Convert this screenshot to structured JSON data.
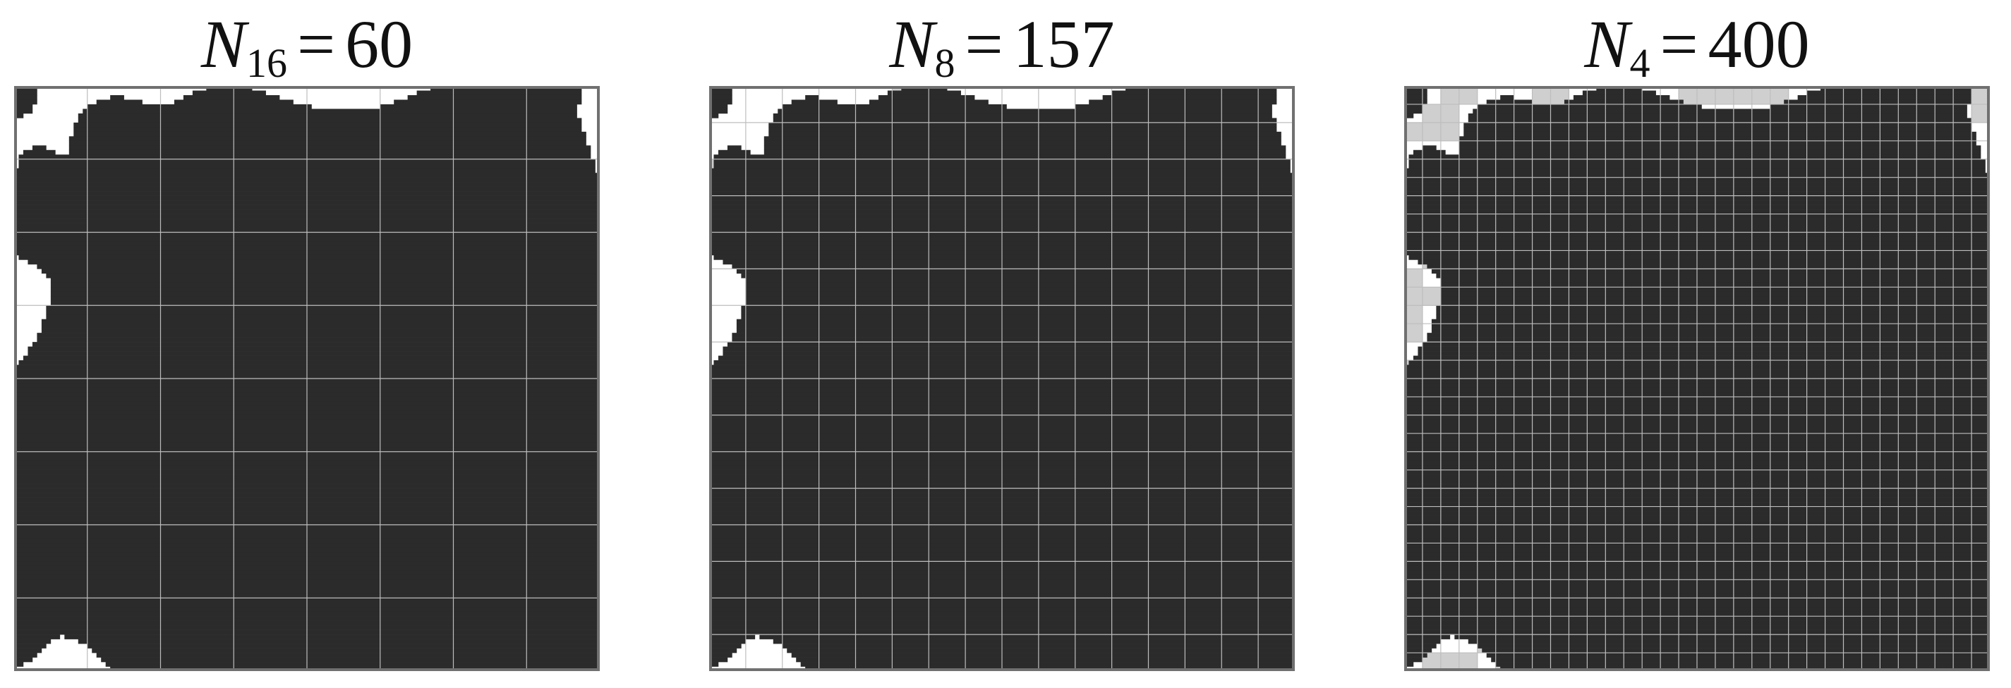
{
  "panels": [
    {
      "symbol": "N",
      "subscript": "16",
      "operator": "=",
      "value": "60",
      "block_cells": 16,
      "refine_threshold": 0.0
    },
    {
      "symbol": "N",
      "subscript": "8",
      "operator": "=",
      "value": "157",
      "block_cells": 8,
      "refine_threshold": 0.09
    },
    {
      "symbol": "N",
      "subscript": "4",
      "operator": "=",
      "value": "400",
      "block_cells": 4,
      "refine_threshold": 0.14
    }
  ],
  "colors": {
    "background": "#ffffff",
    "phase_dark": "#2b2b2b",
    "coarse_block": "#cfcfcf",
    "grid_line": "#bdbdbd",
    "frame": "#707070"
  }
}
